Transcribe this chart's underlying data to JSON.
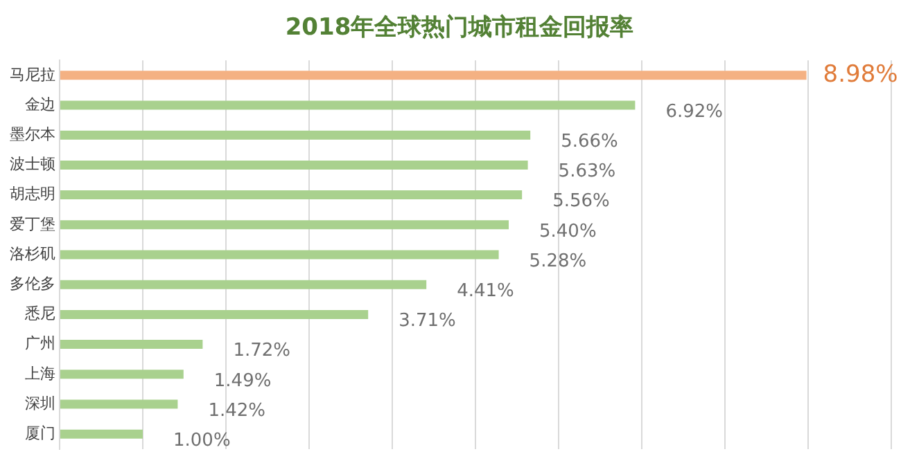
{
  "chart_data": {
    "type": "bar",
    "orientation": "horizontal",
    "title": "2018年全球热门城市租金回报率",
    "categories": [
      "马尼拉",
      "金边",
      "墨尔本",
      "波士顿",
      "胡志明",
      "爱丁堡",
      "洛杉矶",
      "多伦多",
      "悉尼",
      "广州",
      "上海",
      "深圳",
      "厦门"
    ],
    "values": [
      8.98,
      6.92,
      5.66,
      5.63,
      5.56,
      5.4,
      5.28,
      4.41,
      3.71,
      1.72,
      1.49,
      1.42,
      1.0
    ],
    "value_labels": [
      "8.98%",
      "6.92%",
      "5.66%",
      "5.63%",
      "5.56%",
      "5.40%",
      "5.28%",
      "4.41%",
      "3.71%",
      "1.72%",
      "1.49%",
      "1.42%",
      "1.00%"
    ],
    "colors": [
      "#f4b183",
      "#a9d18e",
      "#a9d18e",
      "#a9d18e",
      "#a9d18e",
      "#a9d18e",
      "#a9d18e",
      "#a9d18e",
      "#a9d18e",
      "#a9d18e",
      "#a9d18e",
      "#a9d18e",
      "#a9d18e"
    ],
    "xlim": [
      0,
      10
    ],
    "xticks": [
      {
        "value": 0,
        "label": null
      },
      {
        "value": 1,
        "label": null
      },
      {
        "value": 2,
        "label": null
      },
      {
        "value": 3,
        "label": null
      },
      {
        "value": 4,
        "label": null
      },
      {
        "value": 5,
        "label": null
      },
      {
        "value": 6,
        "label": null
      },
      {
        "value": 7,
        "label": null
      },
      {
        "value": 8,
        "label": null
      },
      {
        "value": 9,
        "label": null
      },
      {
        "value": 10,
        "label": null
      }
    ],
    "grid": "x",
    "tick_labels": "y",
    "legend": false
  }
}
